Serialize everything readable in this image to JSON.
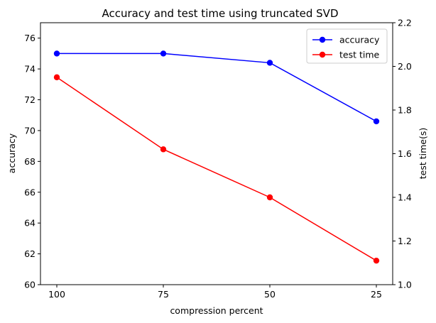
{
  "chart_data": {
    "type": "line",
    "title": "Accuracy and test time using truncated SVD",
    "xlabel": "compression percent",
    "categories": [
      "100",
      "75",
      "50",
      "25"
    ],
    "y_left": {
      "label": "accuracy",
      "lim": [
        60,
        77
      ],
      "ticks": [
        60,
        62,
        64,
        66,
        68,
        70,
        72,
        74,
        76
      ]
    },
    "y_right": {
      "label": "test time(s)",
      "lim": [
        1.0,
        2.2
      ],
      "ticks": [
        "1.0",
        "1.2",
        "1.4",
        "1.6",
        "1.8",
        "2.0",
        "2.2"
      ]
    },
    "series": [
      {
        "name": "accuracy",
        "axis": "left",
        "color": "#0000ff",
        "values": [
          75.0,
          75.0,
          74.4,
          70.6
        ]
      },
      {
        "name": "test time",
        "axis": "right",
        "color": "#ff0000",
        "values": [
          1.95,
          1.62,
          1.4,
          1.11
        ]
      }
    ],
    "legend": "top-right",
    "grid": false
  }
}
